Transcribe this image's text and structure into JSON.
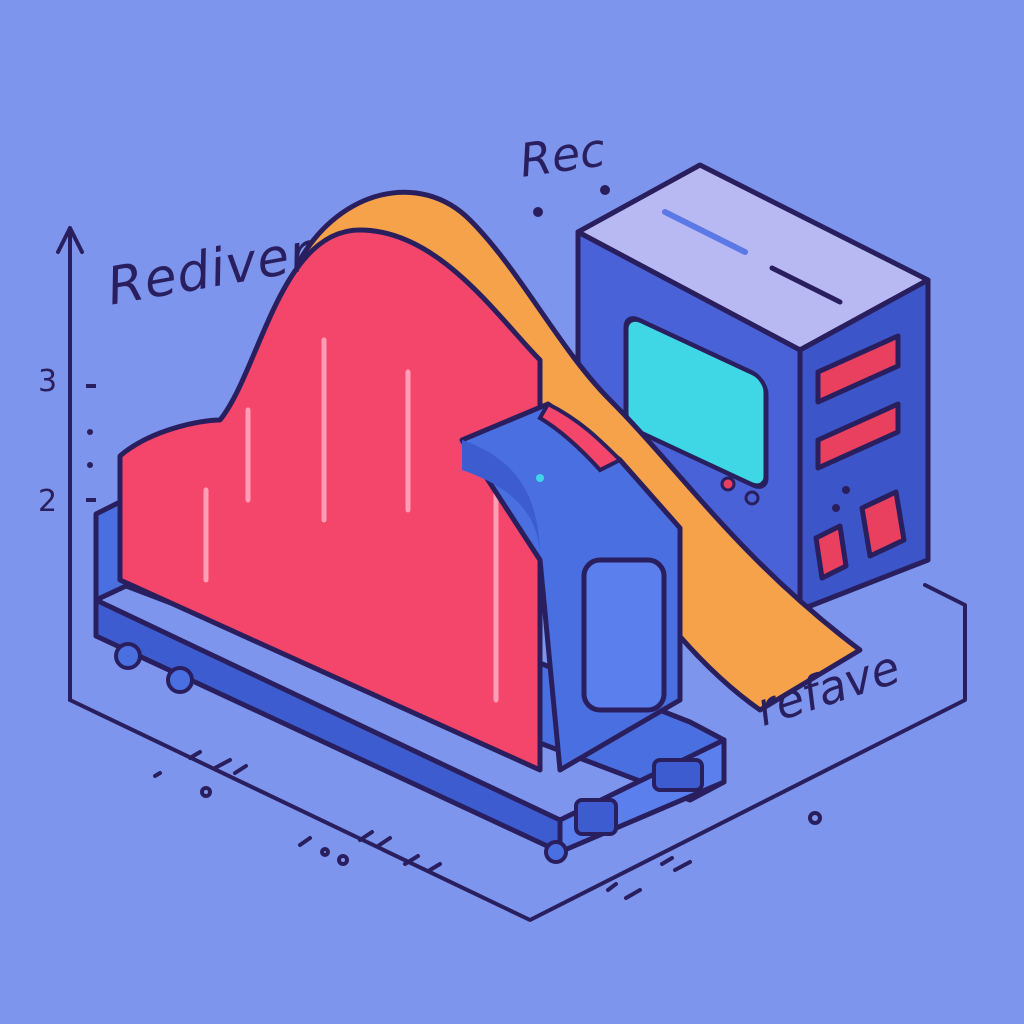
{
  "labels": {
    "top_left": "Rediver",
    "top_center": "Rec",
    "bottom_right": "refave"
  },
  "axis": {
    "ticks": [
      "3",
      "2"
    ]
  },
  "colors": {
    "background": "#7e95ee",
    "outline": "#2a1f5e",
    "wave_front": "#f4456b",
    "wave_back": "#f6a24a",
    "device_blue": "#4a6fe0",
    "device_top": "#b8b8f2",
    "screen": "#3fd6e6",
    "accent_red": "#e8405e"
  },
  "icons": [
    "server-tower-icon",
    "printer-roller-icon",
    "wave-chart-icon",
    "y-axis-arrow-icon"
  ]
}
